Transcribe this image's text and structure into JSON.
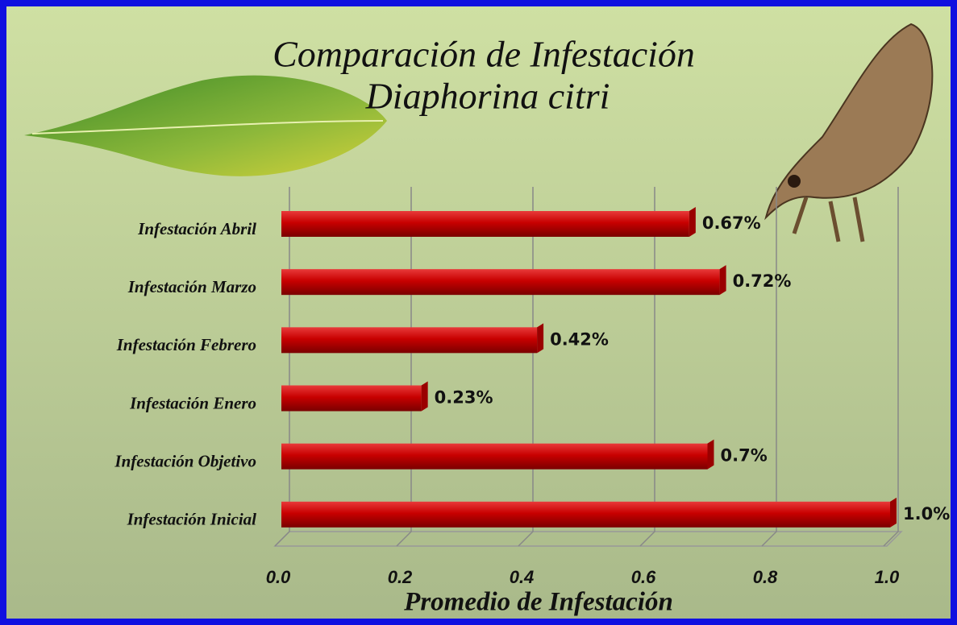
{
  "chart_data": {
    "type": "bar",
    "orientation": "horizontal",
    "title": "Comparación de Infestación",
    "subtitle": "Diaphorina citri",
    "x_label": "Promedio de Infestación",
    "categories": [
      "Infestación Abril",
      "Infestación Marzo",
      "Infestación Febrero",
      "Infestación Enero",
      "Infestación Objetivo",
      "Infestación Inicial"
    ],
    "values": [
      0.67,
      0.72,
      0.42,
      0.23,
      0.7,
      1.0
    ],
    "value_labels": [
      "0.67%",
      "0.72%",
      "0.42%",
      "0.23%",
      "0.7%",
      "1.0%"
    ],
    "color": "#d00000",
    "xlim": [
      0,
      1
    ],
    "xticks": [
      {
        "value": 0,
        "label": "0.0"
      },
      0.2,
      0.4,
      0.6,
      0.8,
      {
        "value": 1,
        "label": "1.0"
      }
    ],
    "grid": true
  }
}
